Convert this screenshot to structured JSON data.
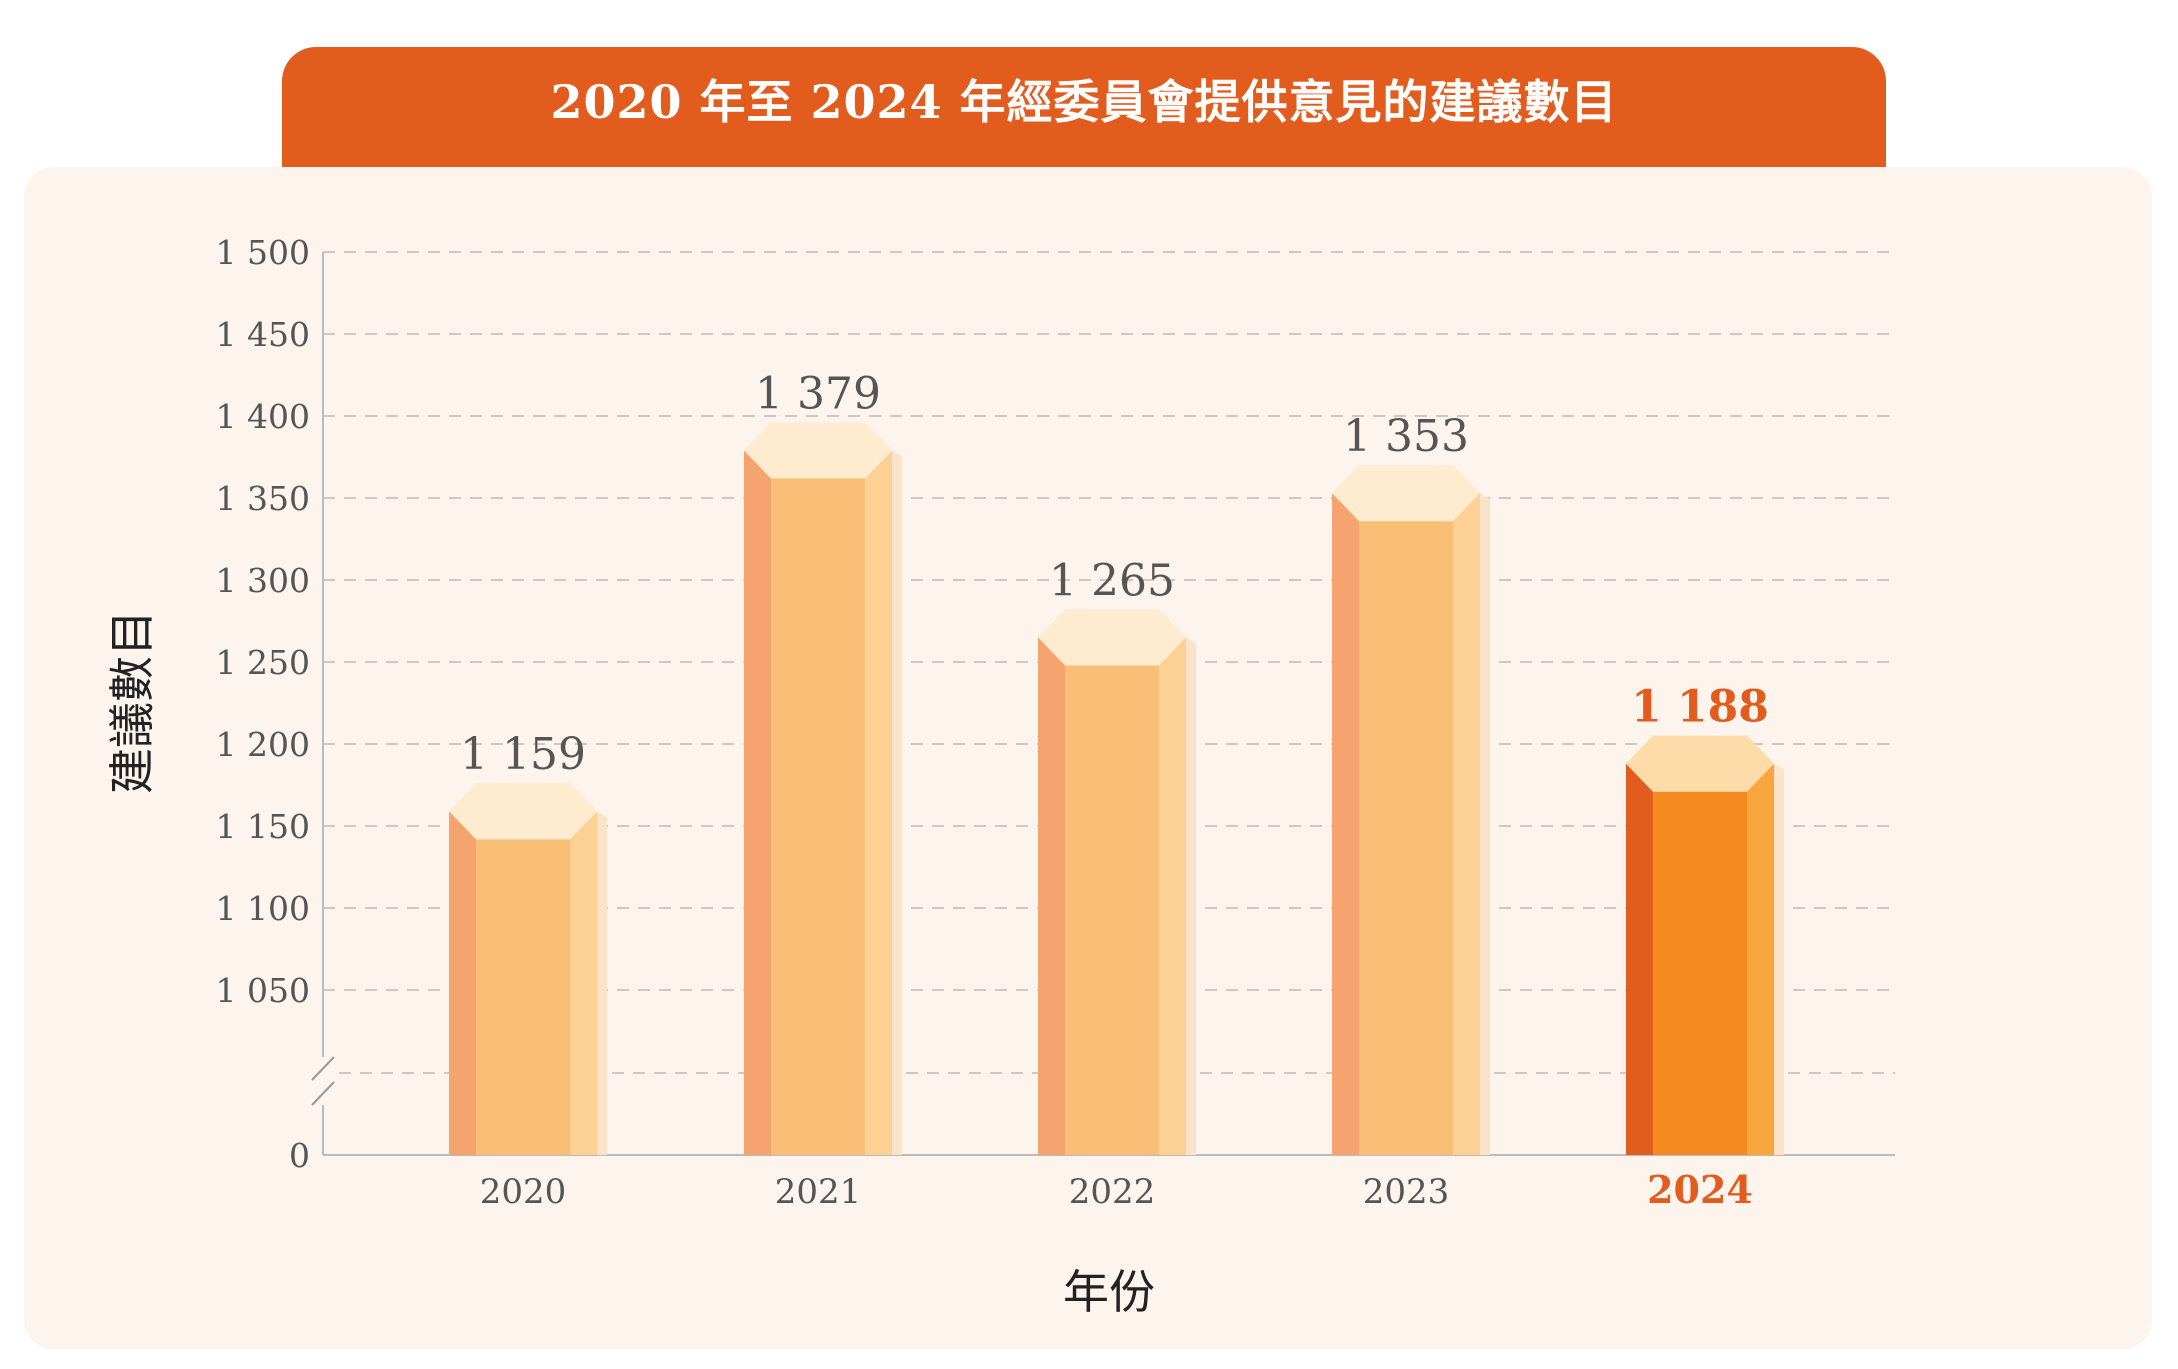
{
  "chart_data": {
    "type": "bar",
    "title": "2020 年至 2024 年經委員會提供意見的建議數目",
    "xlabel": "年份",
    "ylabel": "建議數目",
    "categories": [
      "2020",
      "2021",
      "2022",
      "2023",
      "2024"
    ],
    "values": [
      1159,
      1379,
      1265,
      1353,
      1188
    ],
    "value_labels": [
      "1 159",
      "1 379",
      "1 265",
      "1 353",
      "1 188"
    ],
    "highlight_category": "2024",
    "ylim": [
      1000,
      1500
    ],
    "axis_break": true,
    "yticks": [
      0,
      1050,
      1100,
      1150,
      1200,
      1250,
      1300,
      1350,
      1400,
      1450,
      1500
    ],
    "ytick_labels": [
      "0",
      "1 050",
      "1 100",
      "1 150",
      "1 200",
      "1 250",
      "1 300",
      "1 350",
      "1 400",
      "1 450",
      "1 500"
    ],
    "grid": true,
    "colors": {
      "bar_left": "#F6A46F",
      "bar_front": "#FABF76",
      "bar_right": "#FDD196",
      "bar_top": "#FEEBD0",
      "bar_shadow": "#FBE3CA",
      "highlight_left": "#E25C1E",
      "highlight_front": "#F58A1E",
      "highlight_right": "#F9A63E",
      "highlight_top": "#FDDCA9",
      "title_bg": "#E25C1E",
      "panel_bg": "#FDF4EE"
    }
  }
}
